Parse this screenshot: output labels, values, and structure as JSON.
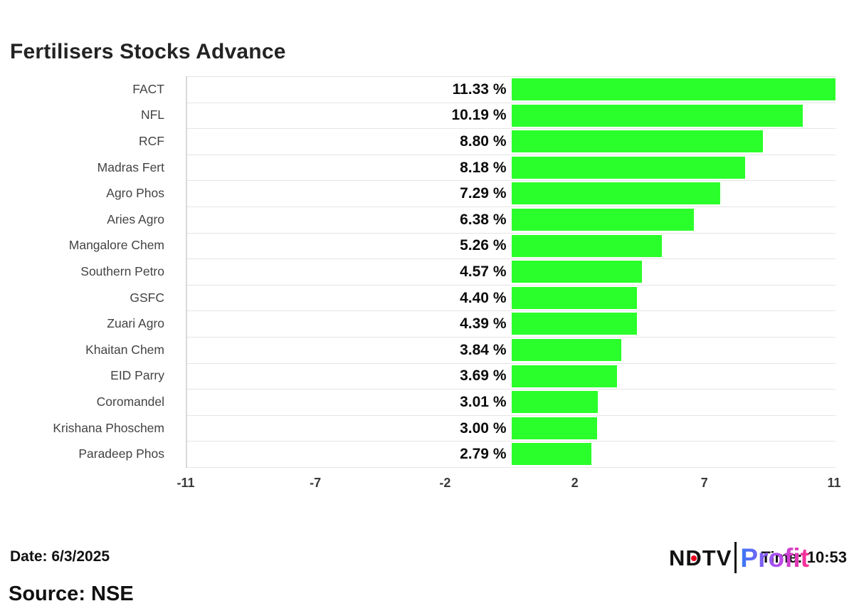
{
  "title": "Fertilisers Stocks Advance",
  "chart_data": {
    "type": "bar",
    "orientation": "horizontal",
    "title": "Fertilisers Stocks Advance",
    "categories": [
      "FACT",
      "NFL",
      "RCF",
      "Madras Fert",
      "Agro Phos",
      "Aries Agro",
      "Mangalore Chem",
      "Southern Petro",
      "GSFC",
      "Zuari Agro",
      "Khaitan Chem",
      "EID Parry",
      "Coromandel",
      "Krishana Phoschem",
      "Paradeep Phos"
    ],
    "values": [
      11.33,
      10.19,
      8.8,
      8.18,
      7.29,
      6.38,
      5.26,
      4.57,
      4.4,
      4.39,
      3.84,
      3.69,
      3.01,
      3.0,
      2.79
    ],
    "value_labels": [
      "11.33 %",
      "10.19 %",
      "8.80 %",
      "8.18 %",
      "7.29 %",
      "6.38 %",
      "5.26 %",
      "4.57 %",
      "4.40 %",
      "4.39 %",
      "3.84 %",
      "3.69 %",
      "3.01 %",
      "3.00 %",
      "2.79 %"
    ],
    "xlabel": "",
    "ylabel": "",
    "xlim": [
      -11.33,
      11.33
    ],
    "x_ticks": [
      "-11",
      "-7",
      "-2",
      "2",
      "7",
      "11"
    ],
    "grid": "row-separators",
    "legend": "none",
    "bar_color": "#2BFF2B"
  },
  "footer": {
    "date": "Date: 6/3/2025",
    "time": "Time: 10:53",
    "source": "Source: NSE"
  },
  "logo": {
    "ndtv_n": "N",
    "ndtv_d": "D",
    "ndtv_tv": "TV",
    "profit": "Profit",
    "colors": {
      "ndtv_text": "#121212",
      "red_dot": "#e8001c",
      "profit_gradient_start": "#3579f6",
      "profit_gradient_mid": "#b44bf0",
      "profit_gradient_end": "#ff2d8e"
    }
  }
}
